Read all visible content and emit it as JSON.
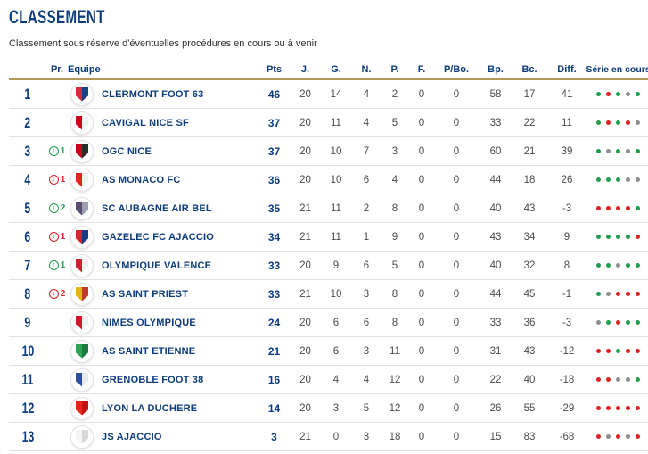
{
  "page": {
    "title": "CLASSEMENT",
    "subtitle": "Classement sous réserve d'éventuelles procédures en cours ou à venir"
  },
  "colors": {
    "navy": "#0d3c7c",
    "green": "#1f9e4d",
    "red": "#e02020",
    "draw_gray": "#8f8f8f",
    "gold_border": "#b5985a",
    "number_gray": "#4a4a4a",
    "row_border": "#e2e2e2"
  },
  "table": {
    "headers": {
      "pr": "Pr.",
      "equipe": "Equipe",
      "pts": "Pts",
      "j": "J.",
      "g": "G.",
      "n": "N.",
      "p": "P.",
      "f": "F.",
      "pbo": "P/Bo.",
      "bp": "Bp.",
      "bc": "Bc.",
      "diff": "Diff.",
      "serie": "Série en cours"
    },
    "rows": [
      {
        "rank": "1",
        "pr": null,
        "team": "CLERMONT FOOT 63",
        "logo": [
          "#d52b3f",
          "#1d3e8f"
        ],
        "pts": "46",
        "j": "20",
        "g": "14",
        "n": "4",
        "p": "2",
        "f": "0",
        "pbo": "0",
        "bp": "58",
        "bc": "17",
        "diff": "41",
        "serie": [
          "win",
          "loss",
          "win",
          "draw",
          "win"
        ]
      },
      {
        "rank": "2",
        "pr": null,
        "team": "CAVIGAL NICE SF",
        "logo": [
          "#d0021b",
          "#f0f0f0"
        ],
        "pts": "37",
        "j": "20",
        "g": "11",
        "n": "4",
        "p": "5",
        "f": "0",
        "pbo": "0",
        "bp": "33",
        "bc": "22",
        "diff": "11",
        "serie": [
          "win",
          "loss",
          "win",
          "loss",
          "draw"
        ]
      },
      {
        "rank": "3",
        "pr": {
          "dir": "up",
          "value": "1"
        },
        "team": "OGC NICE",
        "logo": [
          "#c8001e",
          "#2b2b2b"
        ],
        "pts": "37",
        "j": "20",
        "g": "10",
        "n": "7",
        "p": "3",
        "f": "0",
        "pbo": "0",
        "bp": "60",
        "bc": "21",
        "diff": "39",
        "serie": [
          "win",
          "draw",
          "win",
          "draw",
          "win"
        ]
      },
      {
        "rank": "4",
        "pr": {
          "dir": "down",
          "value": "1"
        },
        "team": "AS MONACO FC",
        "logo": [
          "#e0251f",
          "#f0f0f0"
        ],
        "pts": "36",
        "j": "20",
        "g": "10",
        "n": "6",
        "p": "4",
        "f": "0",
        "pbo": "0",
        "bp": "44",
        "bc": "18",
        "diff": "26",
        "serie": [
          "win",
          "win",
          "win",
          "draw",
          "draw"
        ]
      },
      {
        "rank": "5",
        "pr": {
          "dir": "up",
          "value": "2"
        },
        "team": "SC AUBAGNE AIR BEL",
        "logo": [
          "#5a4d74",
          "#9aa0ad"
        ],
        "pts": "35",
        "j": "21",
        "g": "11",
        "n": "2",
        "p": "8",
        "f": "0",
        "pbo": "0",
        "bp": "40",
        "bc": "43",
        "diff": "-3",
        "serie": [
          "loss",
          "loss",
          "loss",
          "loss",
          "win"
        ]
      },
      {
        "rank": "6",
        "pr": {
          "dir": "down",
          "value": "1"
        },
        "team": "GAZELEC FC AJACCIO",
        "logo": [
          "#d02a2e",
          "#20388f"
        ],
        "pts": "34",
        "j": "21",
        "g": "11",
        "n": "1",
        "p": "9",
        "f": "0",
        "pbo": "0",
        "bp": "43",
        "bc": "34",
        "diff": "9",
        "serie": [
          "win",
          "win",
          "win",
          "win",
          "loss"
        ]
      },
      {
        "rank": "7",
        "pr": {
          "dir": "up",
          "value": "1"
        },
        "team": "OLYMPIQUE VALENCE",
        "logo": [
          "#d21f2c",
          "#f0f0f0"
        ],
        "pts": "33",
        "j": "20",
        "g": "9",
        "n": "6",
        "p": "5",
        "f": "0",
        "pbo": "0",
        "bp": "40",
        "bc": "32",
        "diff": "8",
        "serie": [
          "win",
          "win",
          "draw",
          "win",
          "win"
        ]
      },
      {
        "rank": "8",
        "pr": {
          "dir": "down",
          "value": "2"
        },
        "team": "AS SAINT PRIEST",
        "logo": [
          "#e9b320",
          "#c23a2e"
        ],
        "pts": "33",
        "j": "21",
        "g": "10",
        "n": "3",
        "p": "8",
        "f": "0",
        "pbo": "0",
        "bp": "44",
        "bc": "45",
        "diff": "-1",
        "serie": [
          "win",
          "draw",
          "loss",
          "loss",
          "loss"
        ]
      },
      {
        "rank": "9",
        "pr": null,
        "team": "NIMES OLYMPIQUE",
        "logo": [
          "#d6152c",
          "#f0f0f0"
        ],
        "pts": "24",
        "j": "20",
        "g": "6",
        "n": "6",
        "p": "8",
        "f": "0",
        "pbo": "0",
        "bp": "33",
        "bc": "36",
        "diff": "-3",
        "serie": [
          "draw",
          "win",
          "loss",
          "win",
          "win"
        ]
      },
      {
        "rank": "10",
        "pr": null,
        "team": "AS SAINT ETIENNE",
        "logo": [
          "#2aa455",
          "#1c7a3e"
        ],
        "pts": "21",
        "j": "20",
        "g": "6",
        "n": "3",
        "p": "11",
        "f": "0",
        "pbo": "0",
        "bp": "31",
        "bc": "43",
        "diff": "-12",
        "serie": [
          "loss",
          "loss",
          "win",
          "loss",
          "loss"
        ]
      },
      {
        "rank": "11",
        "pr": null,
        "team": "GRENOBLE FOOT 38",
        "logo": [
          "#2d4f9e",
          "#e8eaf2"
        ],
        "pts": "16",
        "j": "20",
        "g": "4",
        "n": "4",
        "p": "12",
        "f": "0",
        "pbo": "0",
        "bp": "22",
        "bc": "40",
        "diff": "-18",
        "serie": [
          "loss",
          "loss",
          "draw",
          "draw",
          "win"
        ]
      },
      {
        "rank": "12",
        "pr": null,
        "team": "LYON LA DUCHERE",
        "logo": [
          "#e8251a",
          "#c41210"
        ],
        "pts": "14",
        "j": "20",
        "g": "3",
        "n": "5",
        "p": "12",
        "f": "0",
        "pbo": "0",
        "bp": "26",
        "bc": "55",
        "diff": "-29",
        "serie": [
          "loss",
          "loss",
          "loss",
          "loss",
          "loss"
        ]
      },
      {
        "rank": "13",
        "pr": null,
        "team": "JS AJACCIO",
        "logo": [
          "#f5f5f5",
          "#d8d8d8"
        ],
        "pts": "3",
        "j": "21",
        "g": "0",
        "n": "3",
        "p": "18",
        "f": "0",
        "pbo": "0",
        "bp": "15",
        "bc": "83",
        "diff": "-68",
        "serie": [
          "loss",
          "draw",
          "loss",
          "draw",
          "loss"
        ]
      }
    ]
  }
}
